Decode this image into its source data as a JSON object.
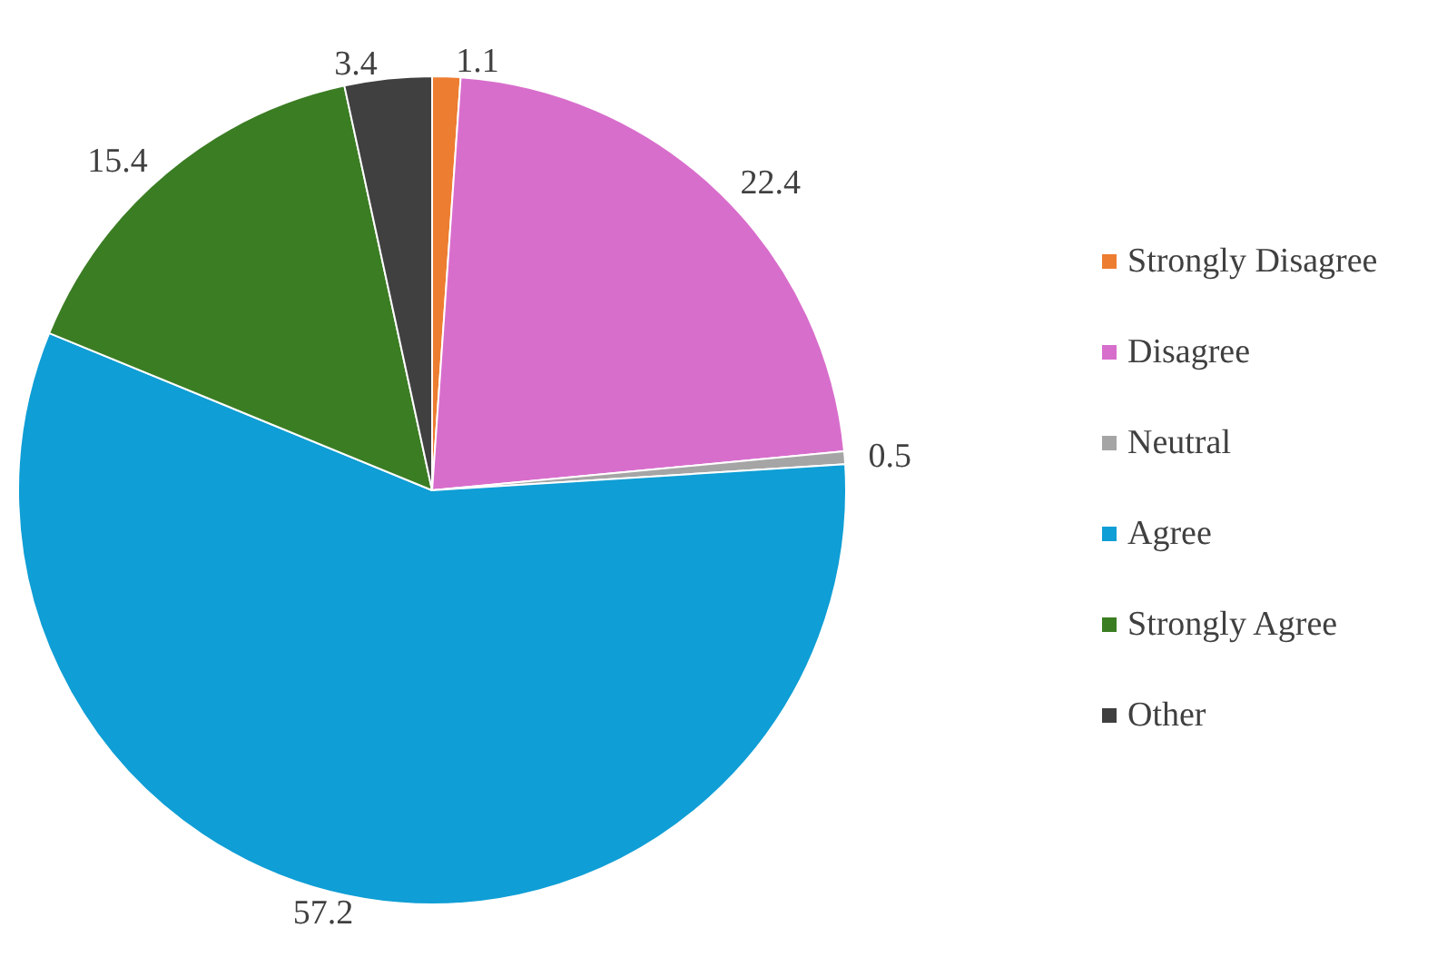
{
  "chart_data": {
    "type": "pie",
    "categories": [
      "Strongly Disagree",
      "Disagree",
      "Neutral",
      "Agree",
      "Strongly Agree",
      "Other"
    ],
    "values": [
      1.1,
      22.4,
      0.5,
      57.2,
      15.4,
      3.4
    ],
    "colors": [
      "#ed7d31",
      "#d86ecc",
      "#a5a5a5",
      "#0f9ed5",
      "#3b7d23",
      "#404040"
    ],
    "data_labels": true,
    "legend": "right"
  }
}
